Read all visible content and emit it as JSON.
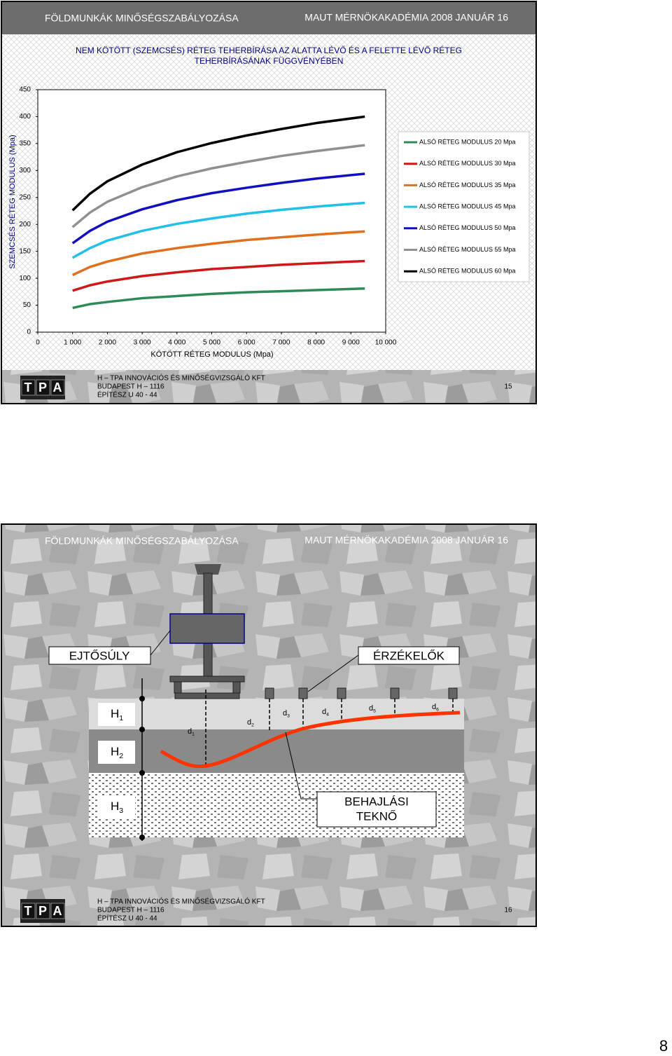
{
  "slides": [
    {
      "header": {
        "left": "FÖLDMUNKÁK MINŐSÉGSZABÁLYOZÁSA",
        "right": "MAUT MÉRNÖKAKADÉMIA 2008 JANUÁR 16"
      },
      "footer": {
        "logo": [
          "T",
          "P",
          "A"
        ],
        "lines": [
          "H – TPA INNOVÁCIÓS ÉS MINŐSÉGVIZSGÁLÓ KFT",
          "BUDAPEST H – 1116",
          "ÉPÍTÉSZ U 40 - 44"
        ],
        "page": "15"
      }
    },
    {
      "header": {
        "left": "FÖLDMUNKÁK MINŐSÉGSZABÁLYOZÁSA",
        "right": "MAUT MÉRNÖKAKADÉMIA 2008 JANUÁR 16"
      },
      "diagram": {
        "drop_weight": "EJTŐSÚLY",
        "sensors": "ÉRZÉKELŐK",
        "bowl": [
          "BEHAJLÁSI",
          "TEKNŐ"
        ],
        "layers": [
          {
            "base": "H",
            "sub": "1"
          },
          {
            "base": "H",
            "sub": "2"
          },
          {
            "base": "H",
            "sub": "3"
          }
        ],
        "deflections": [
          {
            "base": "d",
            "sub": "1"
          },
          {
            "base": "d",
            "sub": "2"
          },
          {
            "base": "d",
            "sub": "3"
          },
          {
            "base": "d",
            "sub": "4"
          },
          {
            "base": "d",
            "sub": "5"
          },
          {
            "base": "d",
            "sub": "6"
          }
        ]
      },
      "footer": {
        "logo": [
          "T",
          "P",
          "A"
        ],
        "lines": [
          "H – TPA INNOVÁCIÓS ÉS MINŐSÉGVIZSGÁLÓ KFT",
          "BUDAPEST H – 1116",
          "ÉPÍTÉSZ U 40 - 44"
        ],
        "page": "16"
      }
    }
  ],
  "chart_data": {
    "type": "line",
    "title": [
      "NEM KÖTÖTT (SZEMCSÉS) RÉTEG TEHERBÍRÁSA AZ ALATTA LÉVŐ ÉS A FELETTE LÉVŐ RÉTEG",
      "TEHERBÍRÁSÁNAK FÜGGVÉNYÉBEN"
    ],
    "x_label": "KÖTÖTT RÉTEG MODULUS (Mpa)",
    "y_label": "SZEMCSÉS RÉTEG MODULUS (Mpa)",
    "x": [
      1000,
      1500,
      2000,
      3000,
      4000,
      5000,
      6000,
      7000,
      8000,
      9400
    ],
    "series": [
      {
        "name": "ALSÓ RÉTEG MODULUS 20 Mpa",
        "color": "#2e8b57",
        "values": [
          45,
          52,
          56,
          63,
          67,
          71,
          74,
          76,
          78,
          81
        ]
      },
      {
        "name": "ALSÓ RÉTEG MODULUS 30 Mpa",
        "color": "#d01818",
        "values": [
          77,
          87,
          94,
          104,
          111,
          117,
          121,
          125,
          128,
          132
        ]
      },
      {
        "name": "ALSÓ RÉTEG MODULUS 35 Mpa",
        "color": "#e07020",
        "values": [
          106,
          121,
          131,
          146,
          156,
          164,
          171,
          176,
          181,
          187
        ]
      },
      {
        "name": "ALSÓ RÉTEG MODULUS 45 Mpa",
        "color": "#20c0e8",
        "values": [
          138,
          156,
          170,
          188,
          201,
          211,
          220,
          227,
          233,
          240
        ]
      },
      {
        "name": "ALSÓ RÉTEG MODULUS 50 Mpa",
        "color": "#1010c0",
        "values": [
          165,
          188,
          205,
          228,
          245,
          258,
          268,
          277,
          285,
          294
        ]
      },
      {
        "name": "ALSÓ RÉTEG MODULUS 55 Mpa",
        "color": "#909090",
        "values": [
          195,
          222,
          242,
          269,
          289,
          304,
          316,
          327,
          336,
          347
        ]
      },
      {
        "name": "ALSÓ RÉTEG MODULUS 60 Mpa",
        "color": "#000000",
        "values": [
          226,
          257,
          280,
          311,
          334,
          351,
          365,
          377,
          388,
          400
        ]
      }
    ],
    "xlim": [
      0,
      10000
    ],
    "xticks": [
      0,
      {
        "value": 1000,
        "label": "1 000"
      },
      {
        "value": 2000,
        "label": "2 000"
      },
      {
        "value": 3000,
        "label": "3 000"
      },
      {
        "value": 4000,
        "label": "4 000"
      },
      {
        "value": 5000,
        "label": "5 000"
      },
      {
        "value": 6000,
        "label": "6 000"
      },
      {
        "value": 7000,
        "label": "7 000"
      },
      {
        "value": 8000,
        "label": "8 000"
      },
      {
        "value": 9000,
        "label": "9 000"
      },
      {
        "value": 10000,
        "label": "10 000"
      }
    ],
    "ylim": [
      0,
      450
    ],
    "yticks": [
      0,
      50,
      100,
      150,
      200,
      250,
      300,
      350,
      400,
      450
    ],
    "legend": "right"
  },
  "page_number": "8"
}
